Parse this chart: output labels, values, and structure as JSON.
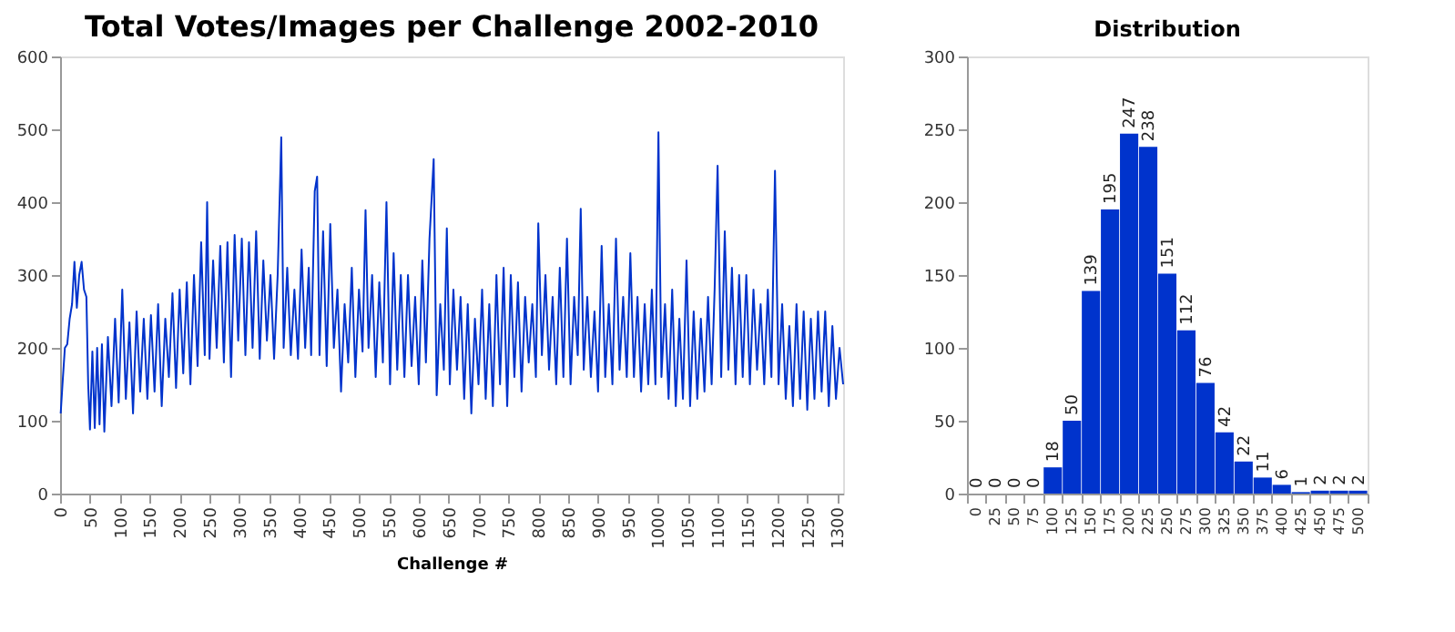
{
  "chart_data": [
    {
      "type": "line",
      "title": "Total Votes/Images per Challenge 2002-2010",
      "xlabel": "Challenge #",
      "color": "#0033cc",
      "grid": false,
      "x": [
        1,
        4,
        8,
        12,
        16,
        20,
        24,
        28,
        32,
        36,
        40,
        44,
        47,
        50,
        54,
        58,
        62,
        66,
        70,
        74,
        80,
        86,
        92,
        98,
        104,
        110,
        116,
        122,
        128,
        134,
        140,
        146,
        152,
        158,
        164,
        170,
        176,
        182,
        188,
        194,
        200,
        206,
        212,
        218,
        224,
        230,
        236,
        242,
        246,
        250,
        256,
        262,
        268,
        274,
        280,
        286,
        292,
        298,
        304,
        310,
        316,
        322,
        328,
        334,
        340,
        346,
        352,
        358,
        364,
        370,
        374,
        380,
        386,
        392,
        398,
        404,
        410,
        416,
        420,
        426,
        430,
        434,
        440,
        446,
        452,
        458,
        464,
        470,
        476,
        482,
        488,
        494,
        500,
        506,
        511,
        516,
        522,
        528,
        534,
        540,
        546,
        552,
        558,
        564,
        570,
        576,
        582,
        588,
        594,
        600,
        606,
        612,
        618,
        625,
        630,
        636,
        642,
        647,
        652,
        658,
        664,
        670,
        676,
        682,
        688,
        694,
        700,
        706,
        712,
        718,
        724,
        730,
        736,
        742,
        748,
        754,
        760,
        766,
        772,
        778,
        784,
        790,
        796,
        800,
        806,
        812,
        818,
        824,
        830,
        836,
        842,
        848,
        854,
        860,
        866,
        871,
        876,
        882,
        888,
        894,
        900,
        906,
        912,
        918,
        924,
        930,
        936,
        942,
        948,
        954,
        960,
        966,
        972,
        978,
        984,
        990,
        996,
        1001,
        1006,
        1012,
        1018,
        1024,
        1030,
        1036,
        1042,
        1048,
        1054,
        1060,
        1066,
        1072,
        1078,
        1084,
        1090,
        1095,
        1100,
        1106,
        1112,
        1118,
        1124,
        1130,
        1136,
        1142,
        1148,
        1154,
        1160,
        1166,
        1172,
        1178,
        1184,
        1190,
        1196,
        1202,
        1208,
        1214,
        1220,
        1226,
        1232,
        1238,
        1244,
        1250,
        1256,
        1262,
        1268,
        1274,
        1280,
        1286,
        1292,
        1298,
        1304,
        1310
      ],
      "values": [
        110,
        150,
        200,
        205,
        240,
        260,
        318,
        255,
        300,
        318,
        280,
        270,
        150,
        88,
        195,
        90,
        200,
        95,
        205,
        85,
        215,
        120,
        240,
        125,
        280,
        130,
        235,
        110,
        250,
        140,
        240,
        130,
        245,
        140,
        260,
        120,
        240,
        160,
        275,
        145,
        280,
        165,
        290,
        150,
        300,
        175,
        345,
        190,
        400,
        185,
        320,
        200,
        340,
        180,
        345,
        160,
        355,
        210,
        350,
        190,
        345,
        200,
        360,
        185,
        320,
        210,
        300,
        185,
        300,
        489,
        200,
        310,
        190,
        280,
        185,
        335,
        200,
        310,
        190,
        415,
        435,
        190,
        360,
        175,
        370,
        200,
        280,
        140,
        260,
        180,
        310,
        160,
        280,
        195,
        389,
        200,
        300,
        160,
        290,
        180,
        400,
        150,
        330,
        170,
        300,
        160,
        300,
        175,
        270,
        150,
        320,
        180,
        350,
        459,
        135,
        260,
        170,
        364,
        150,
        280,
        170,
        270,
        130,
        260,
        110,
        240,
        150,
        280,
        130,
        260,
        120,
        300,
        150,
        310,
        120,
        300,
        160,
        290,
        140,
        270,
        180,
        260,
        160,
        371,
        190,
        300,
        170,
        270,
        150,
        310,
        160,
        350,
        150,
        270,
        190,
        391,
        170,
        270,
        160,
        250,
        140,
        340,
        160,
        260,
        150,
        350,
        170,
        270,
        160,
        330,
        160,
        270,
        140,
        260,
        150,
        280,
        150,
        496,
        160,
        260,
        130,
        280,
        120,
        240,
        130,
        320,
        120,
        250,
        130,
        240,
        140,
        270,
        150,
        280,
        450,
        160,
        360,
        170,
        310,
        150,
        300,
        160,
        300,
        150,
        280,
        170,
        260,
        150,
        280,
        160,
        443,
        150,
        260,
        130,
        230,
        120,
        260,
        130,
        250,
        115,
        240,
        130,
        250,
        140,
        250,
        120,
        230,
        130,
        200,
        150
      ],
      "xlim": [
        0,
        1310
      ],
      "xticks": [
        0,
        50,
        100,
        150,
        200,
        250,
        300,
        350,
        400,
        450,
        500,
        550,
        600,
        650,
        700,
        750,
        800,
        850,
        900,
        950,
        1000,
        1050,
        1100,
        1150,
        1200,
        1250,
        1300
      ],
      "ylim": [
        0,
        600
      ],
      "yticks": [
        0,
        100,
        200,
        300,
        400,
        500,
        600
      ]
    },
    {
      "type": "bar",
      "title": "Distribution",
      "color": "#0033cc",
      "grid": false,
      "data_labels": true,
      "categories": [
        "0",
        "25",
        "50",
        "75",
        "100",
        "125",
        "150",
        "175",
        "200",
        "225",
        "250",
        "275",
        "300",
        "325",
        "350",
        "375",
        "400",
        "425",
        "450",
        "475",
        "500"
      ],
      "values": [
        0,
        0,
        0,
        0,
        18,
        50,
        139,
        195,
        247,
        238,
        151,
        112,
        76,
        42,
        22,
        11,
        6,
        1,
        2,
        2,
        2
      ],
      "ylim": [
        0,
        300
      ],
      "yticks": [
        0,
        50,
        100,
        150,
        200,
        250,
        300
      ]
    }
  ]
}
